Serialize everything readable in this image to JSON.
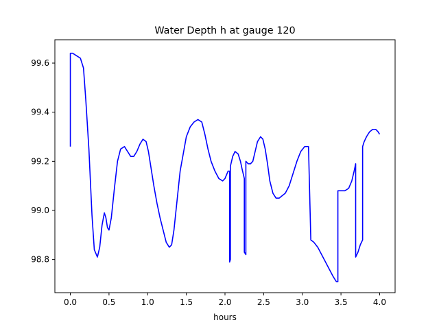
{
  "chart_data": {
    "type": "line",
    "title": "Water Depth h at gauge 120",
    "xlabel": "hours",
    "ylabel": "",
    "xlim": [
      -0.2,
      4.2
    ],
    "ylim": [
      98.665,
      99.695
    ],
    "xticks": [
      0.0,
      0.5,
      1.0,
      1.5,
      2.0,
      2.5,
      3.0,
      3.5,
      4.0
    ],
    "xtick_labels": [
      "0.0",
      "0.5",
      "1.0",
      "1.5",
      "2.0",
      "2.5",
      "3.0",
      "3.5",
      "4.0"
    ],
    "yticks": [
      98.8,
      99.0,
      99.2,
      99.4,
      99.6
    ],
    "ytick_labels": [
      "98.8",
      "99.0",
      "99.2",
      "99.4",
      "99.6"
    ],
    "grid": false,
    "colors": {
      "line": "#0000ff",
      "axes": "#000000",
      "background": "#ffffff"
    },
    "series": [
      {
        "x": [
          0.0,
          0.0,
          0.03,
          0.08,
          0.13,
          0.17,
          0.2,
          0.24,
          0.28,
          0.31,
          0.35,
          0.38,
          0.41,
          0.44,
          0.46,
          0.48,
          0.5,
          0.53,
          0.57,
          0.61,
          0.65,
          0.7,
          0.74,
          0.78,
          0.82,
          0.86,
          0.9,
          0.94,
          0.98,
          1.01,
          1.04,
          1.08,
          1.12,
          1.16,
          1.2,
          1.24,
          1.28,
          1.31,
          1.34,
          1.38,
          1.42,
          1.46,
          1.5,
          1.55,
          1.6,
          1.65,
          1.7,
          1.74,
          1.78,
          1.82,
          1.87,
          1.92,
          1.97,
          2.0,
          2.04,
          2.06,
          2.06,
          2.07,
          2.07,
          2.1,
          2.13,
          2.17,
          2.2,
          2.22,
          2.25,
          2.25,
          2.27,
          2.27,
          2.3,
          2.33,
          2.36,
          2.39,
          2.42,
          2.46,
          2.49,
          2.52,
          2.55,
          2.58,
          2.62,
          2.66,
          2.7,
          2.74,
          2.78,
          2.83,
          2.88,
          2.93,
          2.98,
          3.03,
          3.08,
          3.11,
          3.11,
          3.15,
          3.2,
          3.25,
          3.3,
          3.35,
          3.4,
          3.44,
          3.46,
          3.46,
          3.5,
          3.55,
          3.6,
          3.64,
          3.67,
          3.69,
          3.69,
          3.72,
          3.75,
          3.78,
          3.78,
          3.8,
          3.83,
          3.87,
          3.91,
          3.95,
          3.98,
          4.0
        ],
        "values": [
          99.26,
          99.64,
          99.64,
          99.63,
          99.62,
          99.58,
          99.45,
          99.25,
          98.98,
          98.84,
          98.81,
          98.85,
          98.94,
          98.99,
          98.97,
          98.93,
          98.92,
          98.97,
          99.09,
          99.2,
          99.25,
          99.26,
          99.24,
          99.22,
          99.22,
          99.24,
          99.27,
          99.29,
          99.28,
          99.24,
          99.18,
          99.1,
          99.03,
          98.97,
          98.92,
          98.87,
          98.85,
          98.86,
          98.92,
          99.04,
          99.16,
          99.23,
          99.3,
          99.34,
          99.36,
          99.37,
          99.36,
          99.31,
          99.25,
          99.2,
          99.16,
          99.13,
          99.12,
          99.13,
          99.16,
          99.16,
          98.79,
          98.8,
          99.18,
          99.22,
          99.24,
          99.23,
          99.2,
          99.17,
          99.13,
          98.83,
          98.82,
          99.2,
          99.19,
          99.19,
          99.2,
          99.24,
          99.28,
          99.3,
          99.29,
          99.25,
          99.19,
          99.12,
          99.07,
          99.05,
          99.05,
          99.06,
          99.07,
          99.1,
          99.15,
          99.2,
          99.24,
          99.26,
          99.26,
          98.88,
          98.88,
          98.87,
          98.85,
          98.82,
          98.79,
          98.76,
          98.73,
          98.71,
          98.71,
          99.08,
          99.08,
          99.08,
          99.09,
          99.12,
          99.16,
          99.19,
          98.81,
          98.83,
          98.86,
          98.88,
          99.26,
          99.28,
          99.3,
          99.32,
          99.33,
          99.33,
          99.32,
          99.31
        ]
      }
    ]
  }
}
